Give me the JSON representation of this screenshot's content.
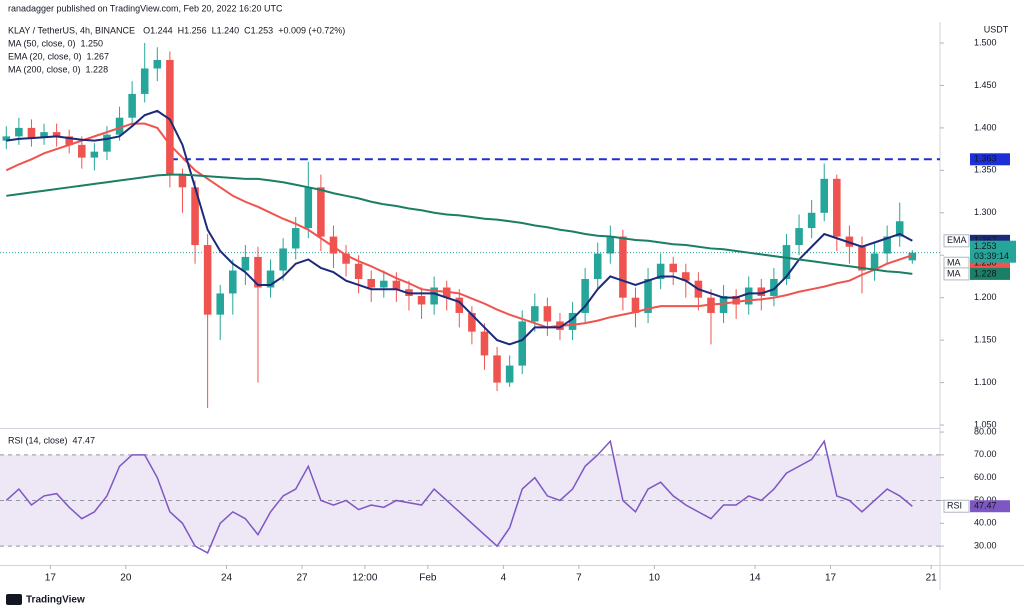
{
  "header": {
    "publisher": "ranadagger published on TradingView.com, Feb 20, 2022 16:20 UTC",
    "footer": "TradingView"
  },
  "chart_data": [
    {
      "type": "candlestick",
      "title": "KLAY / TetherUS, 4h, BINANCE",
      "ohlc_legend": [
        "O1.244",
        "H1.256",
        "L1.240",
        "C1.253",
        "+0.009 (+0.72%)"
      ],
      "currency": "USDT",
      "up_color": "#26a69a",
      "down_color": "#ef5350",
      "open": [
        1.385,
        1.39,
        1.4,
        1.388,
        1.395,
        1.39,
        1.38,
        1.365,
        1.372,
        1.392,
        1.412,
        1.44,
        1.47,
        1.48,
        1.345,
        1.33,
        1.262,
        1.18,
        1.205,
        1.232,
        1.248,
        1.212,
        1.232,
        1.258,
        1.282,
        1.33,
        1.272,
        1.252,
        1.24,
        1.222,
        1.212,
        1.22,
        1.21,
        1.202,
        1.192,
        1.212,
        1.2,
        1.182,
        1.16,
        1.132,
        1.1,
        1.12,
        1.172,
        1.19,
        1.172,
        1.162,
        1.182,
        1.222,
        1.252,
        1.272,
        1.2,
        1.182,
        1.222,
        1.24,
        1.23,
        1.22,
        1.2,
        1.182,
        1.202,
        1.192,
        1.212,
        1.202,
        1.222,
        1.262,
        1.282,
        1.3,
        1.34,
        1.272,
        1.26,
        1.232,
        1.252,
        1.272,
        1.244
      ],
      "high": [
        1.402,
        1.412,
        1.41,
        1.405,
        1.405,
        1.398,
        1.39,
        1.382,
        1.402,
        1.425,
        1.455,
        1.5,
        1.495,
        1.49,
        1.352,
        1.338,
        1.275,
        1.215,
        1.245,
        1.262,
        1.26,
        1.245,
        1.27,
        1.295,
        1.36,
        1.345,
        1.285,
        1.262,
        1.25,
        1.232,
        1.232,
        1.23,
        1.22,
        1.212,
        1.225,
        1.22,
        1.21,
        1.19,
        1.17,
        1.142,
        1.132,
        1.185,
        1.205,
        1.2,
        1.182,
        1.195,
        1.235,
        1.265,
        1.285,
        1.28,
        1.212,
        1.235,
        1.252,
        1.248,
        1.24,
        1.23,
        1.21,
        1.215,
        1.21,
        1.225,
        1.222,
        1.235,
        1.275,
        1.298,
        1.315,
        1.358,
        1.345,
        1.285,
        1.272,
        1.265,
        1.285,
        1.312,
        1.256
      ],
      "low": [
        1.375,
        1.38,
        1.378,
        1.38,
        1.378,
        1.37,
        1.352,
        1.35,
        1.362,
        1.385,
        1.402,
        1.43,
        1.455,
        1.33,
        1.3,
        1.24,
        1.07,
        1.15,
        1.18,
        1.215,
        1.1,
        1.2,
        1.22,
        1.245,
        1.27,
        1.255,
        1.235,
        1.225,
        1.205,
        1.195,
        1.2,
        1.195,
        1.185,
        1.175,
        1.18,
        1.185,
        1.165,
        1.145,
        1.115,
        1.09,
        1.095,
        1.11,
        1.16,
        1.155,
        1.15,
        1.15,
        1.17,
        1.21,
        1.24,
        1.185,
        1.165,
        1.17,
        1.21,
        1.215,
        1.2,
        1.185,
        1.145,
        1.17,
        1.175,
        1.18,
        1.185,
        1.19,
        1.215,
        1.25,
        1.27,
        1.29,
        1.255,
        1.24,
        1.205,
        1.22,
        1.24,
        1.26,
        1.24
      ],
      "close": [
        1.39,
        1.4,
        1.388,
        1.395,
        1.39,
        1.38,
        1.365,
        1.372,
        1.392,
        1.412,
        1.44,
        1.47,
        1.48,
        1.345,
        1.33,
        1.262,
        1.18,
        1.205,
        1.232,
        1.248,
        1.212,
        1.232,
        1.258,
        1.282,
        1.33,
        1.272,
        1.252,
        1.24,
        1.222,
        1.212,
        1.22,
        1.21,
        1.202,
        1.192,
        1.212,
        1.2,
        1.182,
        1.16,
        1.132,
        1.1,
        1.12,
        1.172,
        1.19,
        1.172,
        1.162,
        1.182,
        1.222,
        1.252,
        1.272,
        1.2,
        1.182,
        1.222,
        1.24,
        1.23,
        1.22,
        1.2,
        1.182,
        1.202,
        1.192,
        1.212,
        1.202,
        1.222,
        1.262,
        1.282,
        1.3,
        1.34,
        1.272,
        1.26,
        1.232,
        1.252,
        1.272,
        1.29,
        1.253
      ],
      "last_price_label": "1.253",
      "countdown": "03:39:14",
      "series": [
        {
          "name": "MA (50, close, 0)",
          "value_label": "1.250",
          "axis_tag": "MA",
          "color": "#f0544f",
          "values": [
            1.35,
            1.357,
            1.363,
            1.37,
            1.375,
            1.38,
            1.385,
            1.39,
            1.395,
            1.4,
            1.405,
            1.405,
            1.4,
            1.38,
            1.365,
            1.35,
            1.34,
            1.33,
            1.32,
            1.313,
            1.307,
            1.3,
            1.293,
            1.287,
            1.28,
            1.27,
            1.26,
            1.25,
            1.243,
            1.237,
            1.23,
            1.223,
            1.217,
            1.21,
            1.208,
            1.207,
            1.205,
            1.199,
            1.193,
            1.186,
            1.18,
            1.175,
            1.17,
            1.165,
            1.167,
            1.168,
            1.17,
            1.173,
            1.177,
            1.18,
            1.183,
            1.187,
            1.19,
            1.19,
            1.19,
            1.19,
            1.192,
            1.193,
            1.195,
            1.197,
            1.198,
            1.2,
            1.203,
            1.207,
            1.21,
            1.213,
            1.217,
            1.22,
            1.227,
            1.233,
            1.24,
            1.245,
            1.25
          ]
        },
        {
          "name": "EMA (20, close, 0)",
          "value_label": "1.267",
          "axis_tag": "EMA",
          "color": "#1c2a7a",
          "values": [
            1.385,
            1.387,
            1.388,
            1.389,
            1.39,
            1.388,
            1.386,
            1.385,
            1.387,
            1.39,
            1.402,
            1.415,
            1.42,
            1.41,
            1.38,
            1.33,
            1.28,
            1.255,
            1.24,
            1.23,
            1.215,
            1.215,
            1.225,
            1.24,
            1.245,
            1.235,
            1.23,
            1.22,
            1.215,
            1.21,
            1.21,
            1.21,
            1.205,
            1.205,
            1.205,
            1.2,
            1.195,
            1.18,
            1.165,
            1.15,
            1.145,
            1.15,
            1.165,
            1.165,
            1.165,
            1.175,
            1.19,
            1.21,
            1.225,
            1.22,
            1.215,
            1.22,
            1.225,
            1.225,
            1.22,
            1.21,
            1.205,
            1.2,
            1.2,
            1.205,
            1.205,
            1.21,
            1.225,
            1.245,
            1.26,
            1.275,
            1.27,
            1.265,
            1.26,
            1.265,
            1.27,
            1.275,
            1.267
          ]
        },
        {
          "name": "MA (200, close, 0)",
          "value_label": "1.228",
          "axis_tag": "MA",
          "color": "#1a7f64",
          "values": [
            1.32,
            1.322,
            1.324,
            1.326,
            1.328,
            1.33,
            1.332,
            1.334,
            1.336,
            1.338,
            1.34,
            1.342,
            1.344,
            1.345,
            1.345,
            1.344,
            1.343,
            1.342,
            1.341,
            1.34,
            1.34,
            1.338,
            1.336,
            1.333,
            1.33,
            1.327,
            1.323,
            1.32,
            1.317,
            1.313,
            1.31,
            1.308,
            1.305,
            1.303,
            1.3,
            1.298,
            1.297,
            1.295,
            1.293,
            1.292,
            1.29,
            1.288,
            1.285,
            1.283,
            1.28,
            1.278,
            1.275,
            1.273,
            1.272,
            1.27,
            1.268,
            1.267,
            1.265,
            1.263,
            1.262,
            1.26,
            1.258,
            1.257,
            1.255,
            1.253,
            1.251,
            1.249,
            1.247,
            1.245,
            1.243,
            1.241,
            1.239,
            1.237,
            1.235,
            1.233,
            1.231,
            1.23,
            1.228
          ]
        }
      ],
      "annotations": [
        {
          "value": 1.363,
          "label": "1.363",
          "color": "#1e2fd6"
        }
      ],
      "xlim": [
        -0.5,
        74.2
      ],
      "xticks": [
        {
          "value": 3.5,
          "label": "17"
        },
        {
          "value": 9.5,
          "label": "20"
        },
        {
          "value": 17.5,
          "label": "24"
        },
        {
          "value": 23.5,
          "label": "27"
        },
        {
          "value": 28.5,
          "label": "12:00"
        },
        {
          "value": 33.5,
          "label": "Feb"
        },
        {
          "value": 39.5,
          "label": "4"
        },
        {
          "value": 45.5,
          "label": "7"
        },
        {
          "value": 51.5,
          "label": "10"
        },
        {
          "value": 59.5,
          "label": "14"
        },
        {
          "value": 65.5,
          "label": "17"
        },
        {
          "value": 73.5,
          "label": "21"
        }
      ],
      "ylim": [
        1.0465,
        1.5153
      ],
      "yticks": [
        {
          "value": 1.05,
          "label": "1.050"
        },
        {
          "value": 1.1,
          "label": "1.100"
        },
        {
          "value": 1.15,
          "label": "1.150"
        },
        {
          "value": 1.2,
          "label": "1.200"
        },
        {
          "value": 1.25,
          "label": "1.250"
        },
        {
          "value": 1.3,
          "label": "1.300"
        },
        {
          "value": 1.35,
          "label": "1.350"
        },
        {
          "value": 1.4,
          "label": "1.400"
        },
        {
          "value": 1.45,
          "label": "1.450"
        },
        {
          "value": 1.5,
          "label": "1.500"
        }
      ]
    },
    {
      "type": "line",
      "title": "RSI (14, close)",
      "value_label": "47.47",
      "axis_tag": "RSI",
      "color": "#7e57c2",
      "band": [
        30,
        70
      ],
      "band_color": "#ede7f6",
      "levels": [
        30,
        50,
        70
      ],
      "values": [
        50,
        55,
        48,
        52,
        53,
        47,
        42,
        45,
        52,
        65,
        70,
        70,
        60,
        45,
        40,
        30,
        27,
        40,
        45,
        42,
        35,
        45,
        52,
        55,
        65,
        50,
        48,
        50,
        46,
        48,
        47,
        50,
        49,
        48,
        55,
        50,
        45,
        40,
        35,
        30,
        38,
        55,
        60,
        52,
        50,
        55,
        65,
        70,
        76,
        50,
        45,
        55,
        58,
        52,
        48,
        45,
        42,
        48,
        48,
        52,
        50,
        55,
        62,
        65,
        68,
        76,
        52,
        50,
        45,
        50,
        55,
        52,
        47.47
      ],
      "ylim": [
        21.7,
        80.9
      ],
      "yticks": [
        {
          "value": 30,
          "label": "30.00"
        },
        {
          "value": 40,
          "label": "40.00"
        },
        {
          "value": 50,
          "label": "50.00"
        },
        {
          "value": 60,
          "label": "60.00"
        },
        {
          "value": 70,
          "label": "70.00"
        },
        {
          "value": 80,
          "label": "80.00"
        }
      ]
    }
  ]
}
